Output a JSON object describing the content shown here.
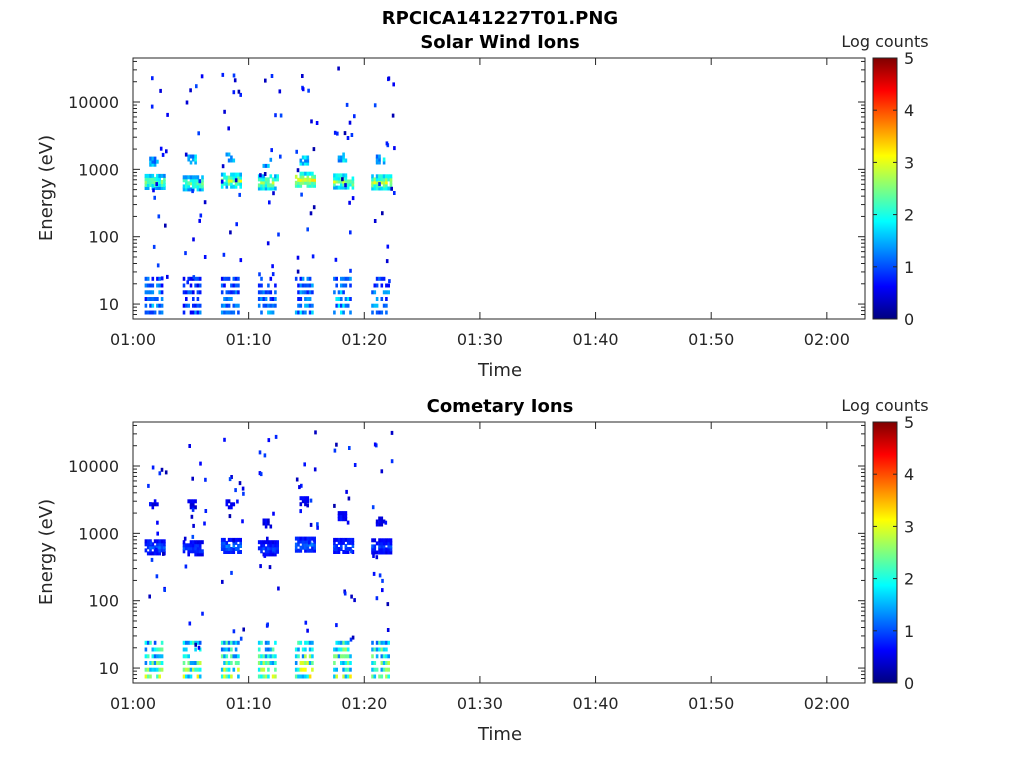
{
  "figure_title": "RPCICA141227T01.PNG",
  "colormap": [
    "#00007f",
    "#0000ff",
    "#007fff",
    "#00ffff",
    "#7fff7f",
    "#ffff00",
    "#ff7f00",
    "#ff0000",
    "#7f0000"
  ],
  "chart_data": [
    {
      "type": "heatmap",
      "title": "Solar Wind Ions",
      "xlabel": "Time",
      "ylabel": "Energy (eV)",
      "x_ticks": [
        "01:00",
        "01:10",
        "01:20",
        "01:30",
        "01:40",
        "01:50",
        "02:00"
      ],
      "x_tick_minutes": [
        0,
        10,
        20,
        30,
        40,
        50,
        60
      ],
      "xlim_minutes": [
        0,
        63.3
      ],
      "y_scale": "log",
      "ylim": [
        6,
        45000
      ],
      "y_ticks": [
        "10",
        "100",
        "1000",
        "10000"
      ],
      "y_tick_values": [
        10,
        100,
        1000,
        10000
      ],
      "colorbar": {
        "label": "Log counts",
        "range": [
          0,
          5
        ],
        "ticks": [
          "0",
          "1",
          "2",
          "3",
          "4",
          "5"
        ]
      },
      "bursts": [
        {
          "minute": 1.0,
          "e_main": 650,
          "main_count": 2.6,
          "e_upper": 1300,
          "upper_count": 1.6,
          "low_count": 1.5
        },
        {
          "minute": 4.3,
          "e_main": 620,
          "main_count": 2.5,
          "e_upper": 1400,
          "upper_count": 1.8,
          "low_count": 1.2
        },
        {
          "minute": 7.6,
          "e_main": 680,
          "main_count": 2.8,
          "e_upper": 1500,
          "upper_count": 1.7,
          "low_count": 1.3
        },
        {
          "minute": 10.8,
          "e_main": 640,
          "main_count": 2.9,
          "e_upper": 1250,
          "upper_count": 1.6,
          "low_count": 1.4
        },
        {
          "minute": 14.0,
          "e_main": 700,
          "main_count": 3.2,
          "e_upper": 1350,
          "upper_count": 1.8,
          "low_count": 1.6
        },
        {
          "minute": 17.3,
          "e_main": 660,
          "main_count": 2.9,
          "e_upper": 1500,
          "upper_count": 1.9,
          "low_count": 1.7
        },
        {
          "minute": 20.6,
          "e_main": 640,
          "main_count": 3.0,
          "e_upper": 1400,
          "upper_count": 1.8,
          "low_count": 1.5
        }
      ]
    },
    {
      "type": "heatmap",
      "title": "Cometary Ions",
      "xlabel": "Time",
      "ylabel": "Energy (eV)",
      "x_ticks": [
        "01:00",
        "01:10",
        "01:20",
        "01:30",
        "01:40",
        "01:50",
        "02:00"
      ],
      "x_tick_minutes": [
        0,
        10,
        20,
        30,
        40,
        50,
        60
      ],
      "xlim_minutes": [
        0,
        63.3
      ],
      "y_scale": "log",
      "ylim": [
        6,
        45000
      ],
      "y_ticks": [
        "10",
        "100",
        "1000",
        "10000"
      ],
      "y_tick_values": [
        10,
        100,
        1000,
        10000
      ],
      "colorbar": {
        "label": "Log counts",
        "range": [
          0,
          5
        ],
        "ticks": [
          "0",
          "1",
          "2",
          "3",
          "4",
          "5"
        ]
      },
      "bursts": [
        {
          "minute": 1.0,
          "e_main": 620,
          "main_count": 1.1,
          "e_upper": 2700,
          "upper_count": 0.6,
          "low_count": 2.6
        },
        {
          "minute": 4.3,
          "e_main": 600,
          "main_count": 1.0,
          "e_upper": 2700,
          "upper_count": 0.6,
          "low_count": 2.7
        },
        {
          "minute": 7.6,
          "e_main": 650,
          "main_count": 1.2,
          "e_upper": 2700,
          "upper_count": 0.6,
          "low_count": 2.7
        },
        {
          "minute": 10.8,
          "e_main": 600,
          "main_count": 1.0,
          "e_upper": 1400,
          "upper_count": 0.6,
          "low_count": 2.6
        },
        {
          "minute": 14.0,
          "e_main": 680,
          "main_count": 1.2,
          "e_upper": 3000,
          "upper_count": 0.7,
          "low_count": 2.8
        },
        {
          "minute": 17.3,
          "e_main": 650,
          "main_count": 1.1,
          "e_upper": 1800,
          "upper_count": 0.7,
          "low_count": 2.8
        },
        {
          "minute": 20.6,
          "e_main": 640,
          "main_count": 1.0,
          "e_upper": 1500,
          "upper_count": 0.6,
          "low_count": 2.7
        }
      ]
    }
  ]
}
